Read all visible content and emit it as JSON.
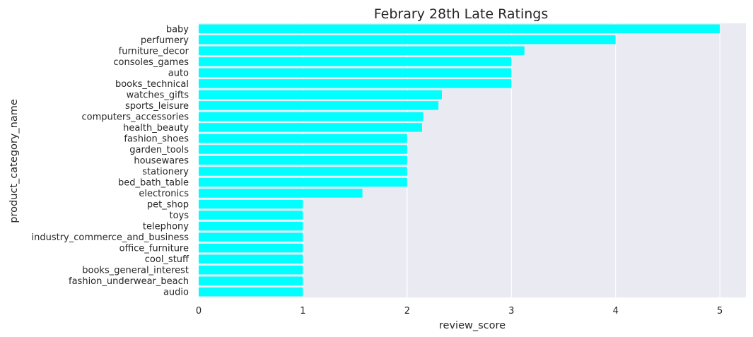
{
  "chart_data": {
    "type": "bar",
    "orientation": "horizontal",
    "title": "Febrary 28th Late Ratings",
    "xlabel": "review_score",
    "ylabel": "product_category_name",
    "xlim": [
      0,
      5.25
    ],
    "xticks": [
      "0",
      "1",
      "2",
      "3",
      "4",
      "5"
    ],
    "grid": true,
    "legend": "none",
    "bar_color": "#00FFFF",
    "plot_background": "#EAEAF2",
    "categories": [
      "baby",
      "perfumery",
      "furniture_decor",
      "consoles_games",
      "auto",
      "books_technical",
      "watches_gifts",
      "sports_leisure",
      "computers_accessories",
      "health_beauty",
      "fashion_shoes",
      "garden_tools",
      "housewares",
      "stationery",
      "bed_bath_table",
      "electronics",
      "pet_shop",
      "toys",
      "telephony",
      "industry_commerce_and_business",
      "office_furniture",
      "cool_stuff",
      "books_general_interest",
      "fashion_underwear_beach",
      "audio"
    ],
    "values": [
      5.0,
      4.0,
      3.125,
      3.0,
      3.0,
      3.0,
      2.333,
      2.3,
      2.154,
      2.143,
      2.0,
      2.0,
      2.0,
      2.0,
      2.0,
      1.571,
      1.0,
      1.0,
      1.0,
      1.0,
      1.0,
      1.0,
      1.0,
      1.0,
      1.0
    ]
  }
}
